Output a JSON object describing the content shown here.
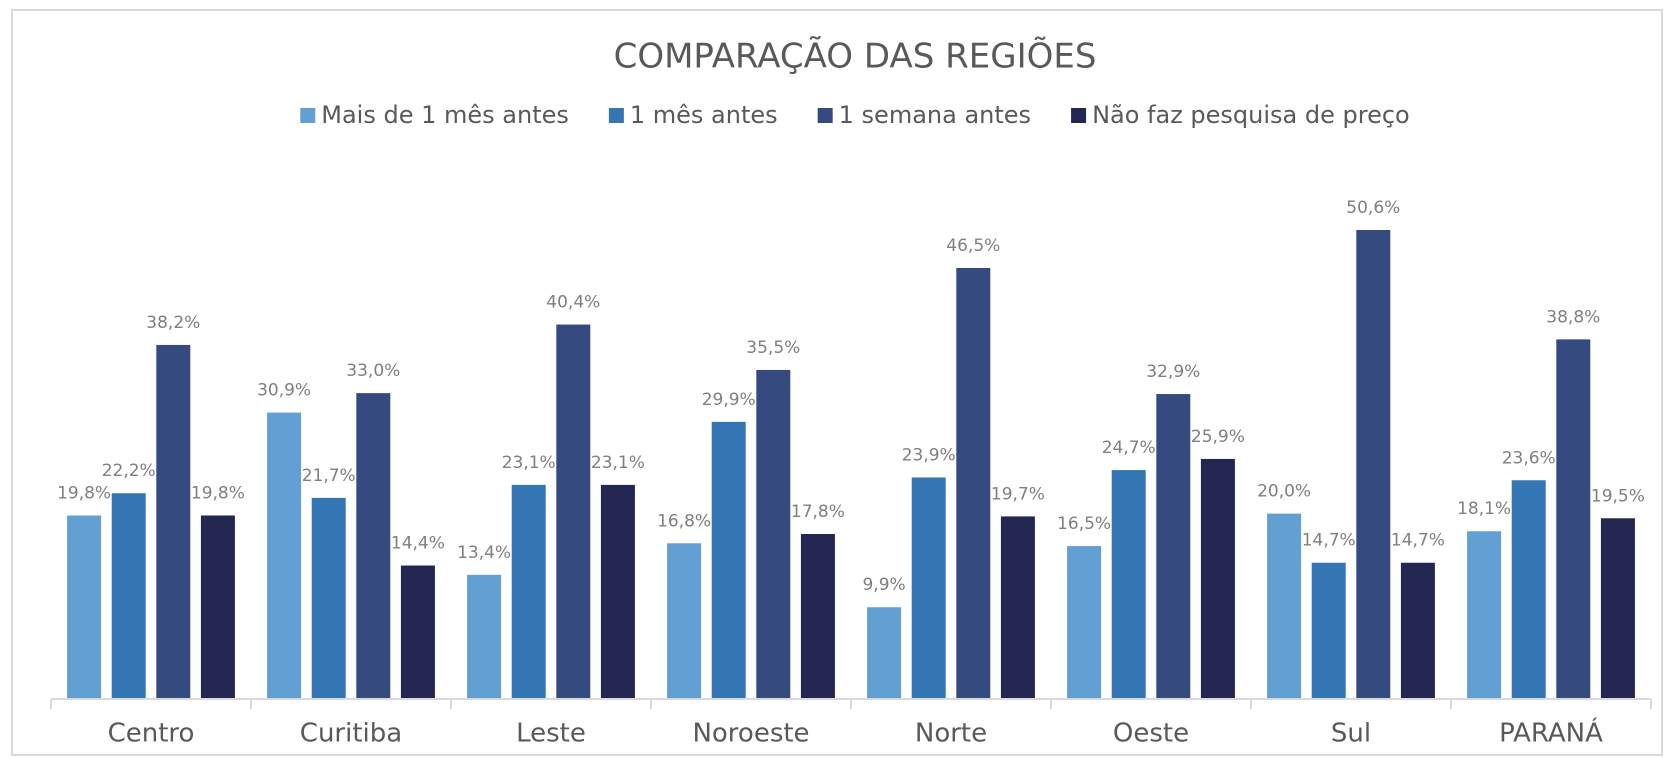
{
  "chart_data": {
    "type": "bar",
    "title": "COMPARAÇÃO DAS REGIÕES",
    "categories": [
      "Centro",
      "Curitiba",
      "Leste",
      "Noroeste",
      "Norte",
      "Oeste",
      "Sul",
      "PARANÁ"
    ],
    "series": [
      {
        "name": "Mais de 1 mês antes",
        "color": "#629fd3",
        "values": [
          19.8,
          30.9,
          13.4,
          16.8,
          9.9,
          16.5,
          20.0,
          18.1
        ],
        "value_labels": [
          "19,8%",
          "30,9%",
          "13,4%",
          "16,8%",
          "9,9%",
          "16,5%",
          "20,0%",
          "18,1%"
        ]
      },
      {
        "name": "1 mês antes",
        "color": "#3476b3",
        "values": [
          22.2,
          21.7,
          23.1,
          29.9,
          23.9,
          24.7,
          14.7,
          23.6
        ],
        "value_labels": [
          "22,2%",
          "21,7%",
          "23,1%",
          "29,9%",
          "23,9%",
          "24,7%",
          "14,7%",
          "23,6%"
        ]
      },
      {
        "name": "1 semana antes",
        "color": "#354a7f",
        "values": [
          38.2,
          33.0,
          40.4,
          35.5,
          46.5,
          32.9,
          50.6,
          38.8
        ],
        "value_labels": [
          "38,2%",
          "33,0%",
          "40,4%",
          "35,5%",
          "46,5%",
          "32,9%",
          "50,6%",
          "38,8%"
        ]
      },
      {
        "name": "Não faz pesquisa de preço",
        "color": "#232651",
        "values": [
          19.8,
          14.4,
          23.1,
          17.8,
          19.7,
          25.9,
          14.7,
          19.5
        ],
        "value_labels": [
          "19,8%",
          "14,4%",
          "23,1%",
          "17,8%",
          "19,7%",
          "25,9%",
          "14,7%",
          "19,5%"
        ]
      }
    ]
  }
}
